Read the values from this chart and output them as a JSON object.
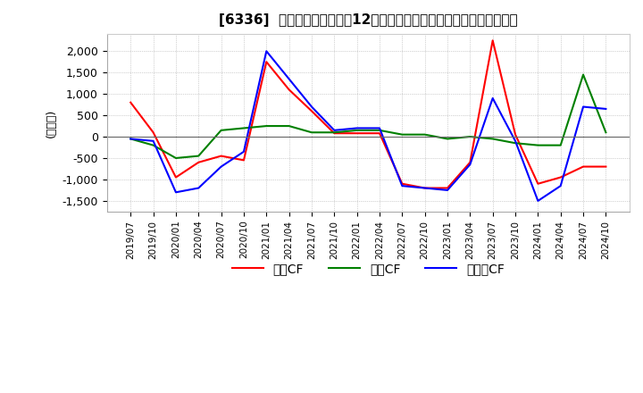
{
  "title": "[6336]  キャッシュフローの12か月移動合計の対前年同期増減額の推移",
  "ylabel": "(百万円)",
  "ylim": [
    -1750,
    2400
  ],
  "yticks": [
    -1500,
    -1000,
    -500,
    0,
    500,
    1000,
    1500,
    2000
  ],
  "legend_labels": [
    "営業CF",
    "投資CF",
    "フリーCF"
  ],
  "colors": [
    "#ff0000",
    "#008000",
    "#0000ff"
  ],
  "dates": [
    "2019/07",
    "2019/10",
    "2020/01",
    "2020/04",
    "2020/07",
    "2020/10",
    "2021/01",
    "2021/04",
    "2021/07",
    "2021/10",
    "2022/01",
    "2022/04",
    "2022/07",
    "2022/10",
    "2023/01",
    "2023/04",
    "2023/07",
    "2023/10",
    "2024/01",
    "2024/04",
    "2024/07",
    "2024/10"
  ],
  "operating_cf": [
    800,
    100,
    -950,
    -600,
    -450,
    -550,
    1750,
    1100,
    600,
    80,
    80,
    80,
    -1100,
    -1200,
    -1200,
    -600,
    2250,
    50,
    -1100,
    -950,
    -700,
    -700
  ],
  "investing_cf": [
    -50,
    -200,
    -500,
    -450,
    150,
    200,
    250,
    250,
    100,
    100,
    150,
    150,
    50,
    50,
    -50,
    0,
    -50,
    -150,
    -200,
    -200,
    1450,
    100
  ],
  "free_cf": [
    -50,
    -100,
    -1300,
    -1200,
    -700,
    -350,
    2000,
    1350,
    700,
    150,
    200,
    200,
    -1150,
    -1200,
    -1250,
    -650,
    900,
    -100,
    -1500,
    -1150,
    700,
    650
  ]
}
